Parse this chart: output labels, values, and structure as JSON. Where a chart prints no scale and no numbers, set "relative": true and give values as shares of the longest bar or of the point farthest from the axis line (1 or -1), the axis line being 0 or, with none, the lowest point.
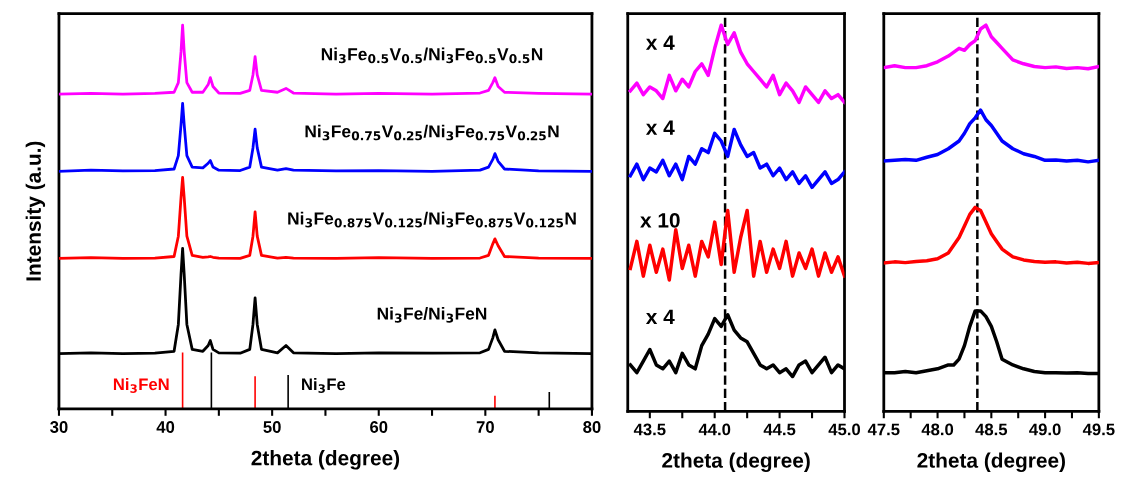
{
  "chart_data": [
    {
      "type": "line",
      "relative": true,
      "tick_labels": "x",
      "xlabel": "2theta (degree)",
      "ylabel": "Intensity (a.u.)",
      "xlim": [
        30,
        80
      ],
      "xticks": [
        30,
        {
          "value": 35,
          "label": null
        },
        40,
        {
          "value": 45,
          "label": null
        },
        50,
        {
          "value": 55,
          "label": null
        },
        60,
        {
          "value": 65,
          "label": null
        },
        70,
        {
          "value": 75,
          "label": null
        },
        80
      ],
      "x": [
        30,
        33,
        36,
        39,
        40.8,
        41.2,
        41.45,
        41.6,
        41.75,
        42.0,
        42.5,
        43.5,
        44.0,
        44.2,
        44.45,
        45,
        47,
        47.9,
        48.2,
        48.4,
        48.6,
        49.0,
        50.5,
        51.3,
        52,
        56,
        60,
        65,
        69.5,
        70.3,
        70.7,
        70.9,
        71.2,
        71.8,
        75,
        80
      ],
      "series": [
        {
          "name": "Ni$_{3}$Fe$_{0.5}$V$_{0.5}$/Ni$_{3}$Fe$_{0.5}$V$_{0.5}$N",
          "color": "#ff00ff",
          "values": [
            0.82,
            0.822,
            0.82,
            0.822,
            0.825,
            0.85,
            0.93,
            1.0,
            0.93,
            0.85,
            0.825,
            0.825,
            0.845,
            0.863,
            0.84,
            0.823,
            0.822,
            0.83,
            0.87,
            0.918,
            0.87,
            0.83,
            0.825,
            0.835,
            0.823,
            0.82,
            0.822,
            0.82,
            0.823,
            0.83,
            0.85,
            0.863,
            0.84,
            0.825,
            0.822,
            0.82
          ]
        },
        {
          "name": "Ni$_{3}$Fe$_{0.75}$V$_{0.25}$/Ni$_{3}$Fe$_{0.75}$V$_{0.25}$N",
          "color": "#0000ff",
          "values": [
            0.619,
            0.622,
            0.62,
            0.621,
            0.625,
            0.66,
            0.74,
            0.796,
            0.74,
            0.66,
            0.63,
            0.628,
            0.64,
            0.647,
            0.63,
            0.622,
            0.621,
            0.63,
            0.68,
            0.729,
            0.68,
            0.63,
            0.622,
            0.626,
            0.622,
            0.62,
            0.621,
            0.619,
            0.622,
            0.63,
            0.65,
            0.665,
            0.645,
            0.625,
            0.62,
            0.619
          ]
        },
        {
          "name": "Ni$_{3}$Fe$_{0.875}$V$_{0.125}$/Ni$_{3}$Fe$_{0.875}$V$_{0.125}$N",
          "color": "#ff0000",
          "values": [
            0.392,
            0.394,
            0.392,
            0.393,
            0.397,
            0.45,
            0.55,
            0.603,
            0.55,
            0.45,
            0.4,
            0.395,
            0.396,
            0.397,
            0.395,
            0.393,
            0.392,
            0.4,
            0.45,
            0.513,
            0.45,
            0.4,
            0.393,
            0.395,
            0.393,
            0.392,
            0.394,
            0.392,
            0.393,
            0.4,
            0.43,
            0.443,
            0.425,
            0.397,
            0.393,
            0.392
          ]
        },
        {
          "name": "Ni$_{3}$Fe/Ni$_{3}$FeN",
          "color": "#000000",
          "values": [
            0.144,
            0.146,
            0.144,
            0.145,
            0.15,
            0.22,
            0.35,
            0.418,
            0.35,
            0.22,
            0.155,
            0.15,
            0.165,
            0.178,
            0.155,
            0.146,
            0.145,
            0.155,
            0.22,
            0.289,
            0.22,
            0.155,
            0.146,
            0.165,
            0.146,
            0.144,
            0.146,
            0.145,
            0.146,
            0.155,
            0.185,
            0.206,
            0.18,
            0.15,
            0.146,
            0.144
          ]
        },
        {
          "type": "bar",
          "name": "Ni$_{3}$FeN",
          "color": "#ff0000",
          "x": [
            41.6,
            48.4,
            70.9
          ],
          "values": [
            0.147,
            0.085,
            0.034
          ]
        },
        {
          "type": "bar",
          "name": "Ni$_{3}$Fe",
          "color": "#000000",
          "x": [
            44.3,
            51.5,
            76.0
          ],
          "values": [
            0.147,
            0.088,
            0.044
          ]
        }
      ]
    },
    {
      "type": "line",
      "relative": true,
      "tick_labels": "x",
      "xlabel": "2theta (degree)",
      "xlim": [
        43.33,
        45.0
      ],
      "xticks": [
        43.5,
        {
          "value": 43.75,
          "label": null
        },
        {
          "value": 44.0,
          "label": "44.0"
        },
        {
          "value": 44.25,
          "label": null
        },
        44.5,
        {
          "value": 44.75,
          "label": null
        },
        {
          "value": 45.0,
          "label": "45.0"
        }
      ],
      "x": [
        43.35,
        43.4,
        43.45,
        43.5,
        43.55,
        43.6,
        43.65,
        43.7,
        43.75,
        43.8,
        43.85,
        43.9,
        43.95,
        44.0,
        44.05,
        44.1,
        44.15,
        44.2,
        44.25,
        44.3,
        44.35,
        44.4,
        44.45,
        44.5,
        44.55,
        44.6,
        44.65,
        44.7,
        44.75,
        44.8,
        44.85,
        44.9,
        44.95,
        45.0
      ],
      "ref_lines": [
        {
          "axis": "x",
          "value": 44.08,
          "color": "#000000",
          "line_style": "dashed"
        }
      ],
      "annotations": [
        "x 4",
        "x 4",
        "x 10",
        "x 4"
      ],
      "series": [
        {
          "color": "#ff00ff",
          "values": [
            0.83,
            0.85,
            0.82,
            0.84,
            0.83,
            0.81,
            0.87,
            0.83,
            0.86,
            0.84,
            0.88,
            0.9,
            0.87,
            0.94,
            1.0,
            0.95,
            0.98,
            0.93,
            0.9,
            0.88,
            0.86,
            0.84,
            0.87,
            0.82,
            0.85,
            0.83,
            0.8,
            0.84,
            0.82,
            0.8,
            0.83,
            0.81,
            0.82,
            0.8
          ]
        },
        {
          "color": "#0000ff",
          "values": [
            0.61,
            0.64,
            0.6,
            0.63,
            0.62,
            0.65,
            0.61,
            0.64,
            0.6,
            0.66,
            0.64,
            0.68,
            0.67,
            0.72,
            0.7,
            0.66,
            0.73,
            0.69,
            0.66,
            0.67,
            0.63,
            0.64,
            0.61,
            0.63,
            0.6,
            0.62,
            0.59,
            0.61,
            0.58,
            0.6,
            0.62,
            0.59,
            0.6,
            0.62
          ]
        },
        {
          "color": "#ff0000",
          "values": [
            0.37,
            0.44,
            0.35,
            0.43,
            0.36,
            0.42,
            0.34,
            0.47,
            0.37,
            0.43,
            0.35,
            0.44,
            0.4,
            0.49,
            0.38,
            0.52,
            0.36,
            0.45,
            0.52,
            0.35,
            0.44,
            0.36,
            0.42,
            0.37,
            0.44,
            0.35,
            0.41,
            0.37,
            0.42,
            0.35,
            0.41,
            0.36,
            0.4,
            0.35
          ]
        },
        {
          "color": "#000000",
          "values": [
            0.12,
            0.1,
            0.13,
            0.16,
            0.12,
            0.11,
            0.13,
            0.1,
            0.15,
            0.12,
            0.11,
            0.17,
            0.2,
            0.24,
            0.22,
            0.25,
            0.21,
            0.19,
            0.18,
            0.15,
            0.12,
            0.11,
            0.12,
            0.1,
            0.11,
            0.09,
            0.12,
            0.13,
            0.1,
            0.12,
            0.14,
            0.1,
            0.12,
            0.11
          ]
        }
      ]
    },
    {
      "type": "line",
      "relative": true,
      "tick_labels": "x",
      "xlabel": "2theta (degree)",
      "xlim": [
        47.5,
        49.5
      ],
      "xticks": [
        47.5,
        {
          "value": 47.75,
          "label": null
        },
        {
          "value": 48.0,
          "label": "48.0"
        },
        {
          "value": 48.25,
          "label": null
        },
        48.5,
        {
          "value": 48.75,
          "label": null
        },
        {
          "value": 49.0,
          "label": "49.0"
        },
        {
          "value": 49.25,
          "label": null
        },
        49.5
      ],
      "ref_lines": [
        {
          "axis": "x",
          "value": 48.37,
          "color": "#000000",
          "line_style": "dashed"
        }
      ],
      "series": [
        {
          "color": "#ff00ff",
          "x": [
            47.5,
            47.6,
            47.7,
            47.8,
            47.9,
            48.0,
            48.1,
            48.2,
            48.25,
            48.3,
            48.35,
            48.4,
            48.45,
            48.5,
            48.55,
            48.6,
            48.65,
            48.7,
            48.8,
            48.9,
            49.0,
            49.1,
            49.2,
            49.3,
            49.4,
            49.5
          ],
          "values": [
            0.89,
            0.895,
            0.89,
            0.89,
            0.895,
            0.905,
            0.92,
            0.94,
            0.935,
            0.95,
            0.96,
            0.99,
            1.0,
            0.97,
            0.955,
            0.94,
            0.925,
            0.91,
            0.9,
            0.893,
            0.89,
            0.892,
            0.888,
            0.89,
            0.887,
            0.893
          ]
        },
        {
          "color": "#0000ff",
          "x": [
            47.5,
            47.6,
            47.7,
            47.8,
            47.9,
            48.0,
            48.1,
            48.2,
            48.25,
            48.3,
            48.35,
            48.4,
            48.45,
            48.5,
            48.55,
            48.6,
            48.7,
            48.8,
            48.9,
            49.0,
            49.1,
            49.2,
            49.3,
            49.4,
            49.5
          ],
          "values": [
            0.648,
            0.65,
            0.652,
            0.65,
            0.658,
            0.665,
            0.68,
            0.7,
            0.72,
            0.745,
            0.76,
            0.78,
            0.755,
            0.74,
            0.72,
            0.7,
            0.68,
            0.667,
            0.66,
            0.65,
            0.651,
            0.648,
            0.65,
            0.646,
            0.65
          ]
        },
        {
          "color": "#ff0000",
          "x": [
            47.5,
            47.6,
            47.7,
            47.8,
            47.9,
            48.0,
            48.1,
            48.2,
            48.25,
            48.3,
            48.35,
            48.4,
            48.45,
            48.5,
            48.55,
            48.6,
            48.7,
            48.8,
            48.9,
            49.0,
            49.1,
            49.2,
            49.3,
            49.4,
            49.5
          ],
          "values": [
            0.384,
            0.387,
            0.385,
            0.388,
            0.39,
            0.395,
            0.41,
            0.45,
            0.48,
            0.51,
            0.528,
            0.52,
            0.49,
            0.46,
            0.44,
            0.42,
            0.4,
            0.392,
            0.388,
            0.386,
            0.387,
            0.384,
            0.386,
            0.383,
            0.385
          ]
        },
        {
          "color": "#000000",
          "x": [
            47.5,
            47.6,
            47.7,
            47.8,
            47.9,
            48.0,
            48.1,
            48.15,
            48.2,
            48.25,
            48.3,
            48.35,
            48.4,
            48.45,
            48.5,
            48.55,
            48.6,
            48.7,
            48.8,
            48.9,
            49.0,
            49.1,
            49.2,
            49.3,
            49.4,
            49.5
          ],
          "values": [
            0.1,
            0.1,
            0.103,
            0.1,
            0.105,
            0.11,
            0.12,
            0.12,
            0.135,
            0.17,
            0.22,
            0.26,
            0.26,
            0.245,
            0.22,
            0.18,
            0.135,
            0.12,
            0.11,
            0.103,
            0.1,
            0.1,
            0.099,
            0.1,
            0.098,
            0.098
          ]
        }
      ]
    }
  ]
}
